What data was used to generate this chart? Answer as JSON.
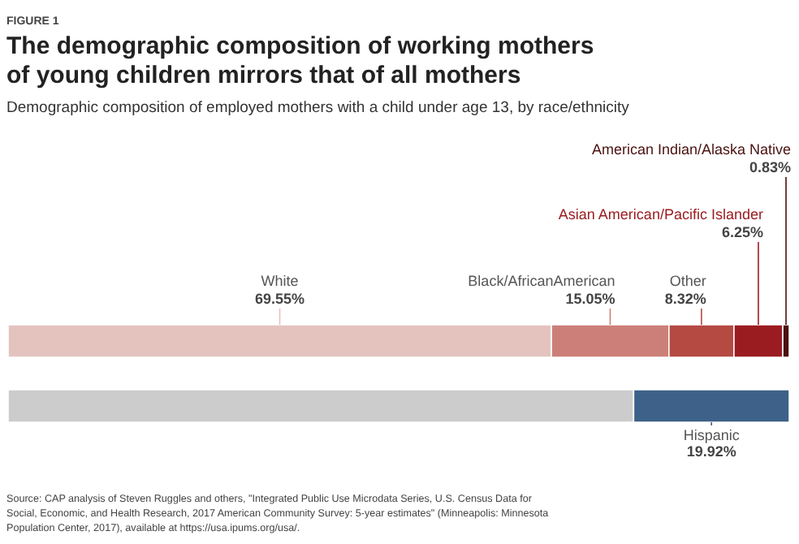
{
  "chart_data": {
    "type": "bar",
    "orientation": "horizontal",
    "stacked": true,
    "title": "The demographic composition of working mothers of young children mirrors that of all mothers",
    "subtitle": "Demographic composition of employed mothers with a child under age 13, by race/ethnicity",
    "annotations": [
      "FIGURE 1",
      "Source: CAP analysis of Steven Ruggles and others, \"Integrated Public Use Microdata Series, U.S. Census Data for Social, Economic, and Health Research, 2017 American Community Survey: 5-year estimates\" (Minneapolis: Minnesota Population Center, 2017), available at https://usa.ipums.org/usa/."
    ],
    "categories": [
      null,
      null
    ],
    "series": [
      {
        "name": "White",
        "color": "#e4c3bf",
        "values": [
          69.55,
          null
        ],
        "value_labels": [
          "69.55%",
          null
        ]
      },
      {
        "name": "Black/AfricanAmerican",
        "color": "#cc7f78",
        "values": [
          15.05,
          null
        ],
        "value_labels": [
          "15.05%",
          null
        ]
      },
      {
        "name": "Other",
        "color": "#b54a42",
        "values": [
          8.32,
          null
        ],
        "value_labels": [
          "8.32%",
          null
        ]
      },
      {
        "name": "Asian American/Pacific Islander",
        "color": "#9b1c20",
        "values": [
          6.25,
          null
        ],
        "value_labels": [
          "6.25%",
          null
        ]
      },
      {
        "name": "American Indian/Alaska Native",
        "color": "#4a1010",
        "values": [
          0.83,
          null
        ],
        "value_labels": [
          "0.83%",
          null
        ]
      },
      {
        "color": "#cccccc",
        "values": [
          null,
          80.08
        ]
      },
      {
        "name": "Hispanic",
        "color": "#3d6188",
        "values": [
          null,
          19.92
        ],
        "value_labels": [
          null,
          "19.92%"
        ]
      }
    ]
  }
}
